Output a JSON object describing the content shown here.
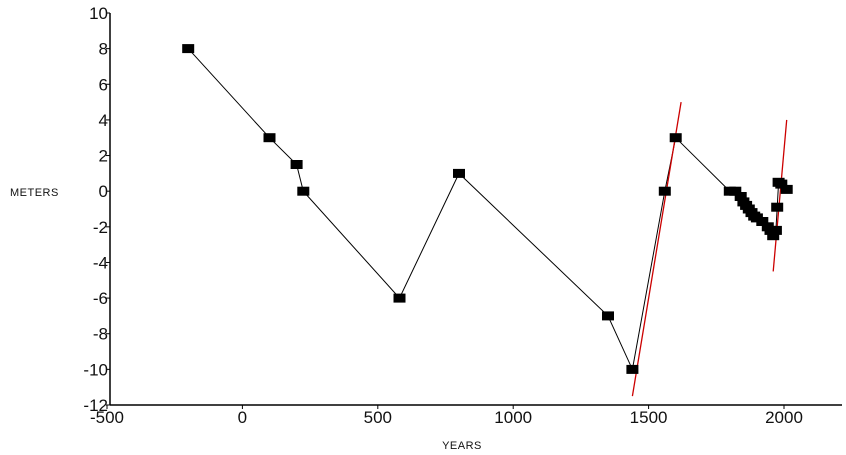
{
  "chart_data": {
    "type": "line",
    "title": "",
    "xlabel": "YEARS",
    "ylabel": "METERS",
    "xlim": [
      -500,
      2200
    ],
    "ylim": [
      -12,
      10
    ],
    "xticks": [
      -500,
      0,
      500,
      1000,
      1500,
      2000
    ],
    "yticks": [
      -12,
      -10,
      -8,
      -6,
      -4,
      -2,
      0,
      2,
      4,
      6,
      8,
      10
    ],
    "grid": false,
    "series": [
      {
        "color": "#000000",
        "marker": "square",
        "x": [
          -200,
          100,
          200,
          225,
          580,
          800,
          1350,
          1440,
          1560,
          1600,
          1800,
          1820,
          1840,
          1850,
          1860,
          1870,
          1880,
          1890,
          1900,
          1920,
          1940,
          1950,
          1960,
          1970,
          1975,
          1980,
          1990,
          2010
        ],
        "y": [
          8,
          3,
          1.5,
          0,
          -6,
          1,
          -7,
          -10,
          0,
          3,
          0,
          0,
          -0.3,
          -0.6,
          -0.8,
          -1.0,
          -1.2,
          -1.4,
          -1.5,
          -1.7,
          -2.0,
          -2.2,
          -2.5,
          -2.2,
          -0.9,
          0.5,
          0.4,
          0.1
        ]
      }
    ],
    "trend_lines": [
      {
        "color": "#cc0000",
        "x": [
          1440,
          1620
        ],
        "y": [
          -11.5,
          5
        ]
      },
      {
        "color": "#cc0000",
        "x": [
          1960,
          2010
        ],
        "y": [
          -4.5,
          4
        ]
      }
    ]
  }
}
